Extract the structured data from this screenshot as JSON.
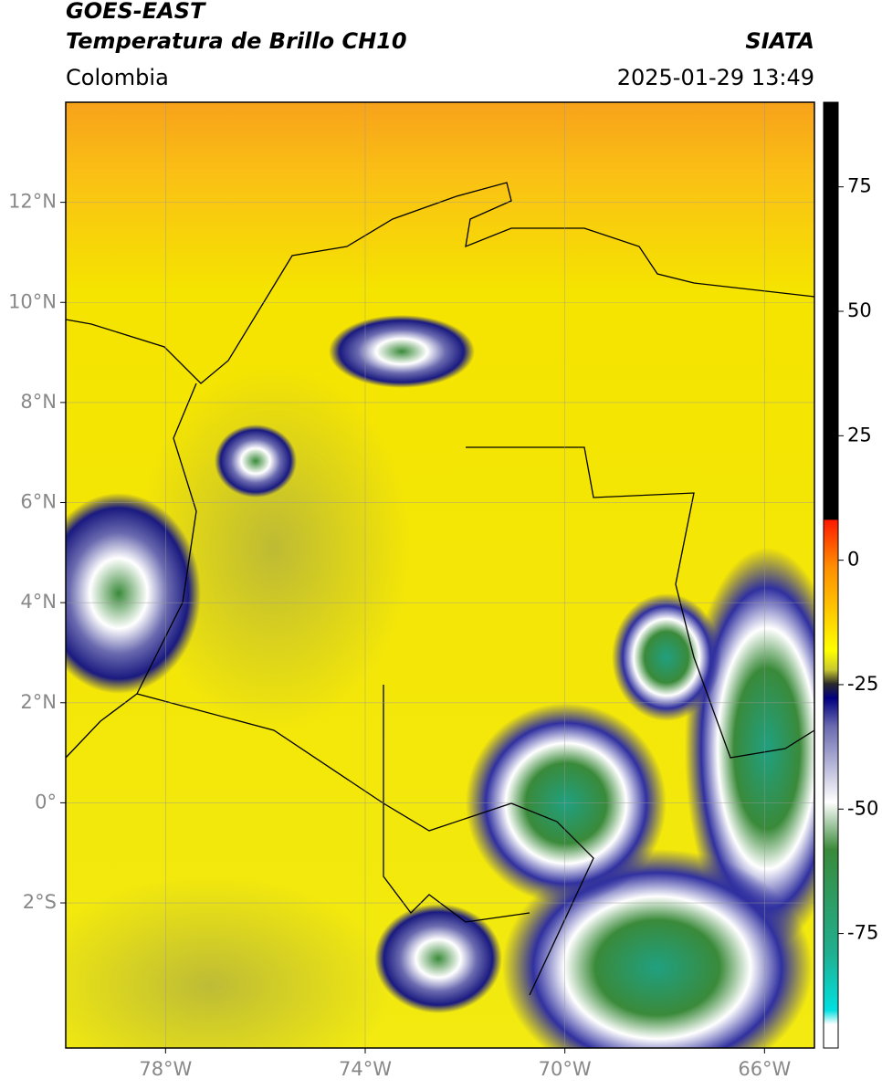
{
  "header": {
    "title": "GOES-EAST",
    "subtitle": "Temperatura de Brillo CH10",
    "region": "Colombia",
    "source": "SIATA",
    "datetime": "2025-01-29 13:49"
  },
  "map": {
    "xlim": [
      -80,
      -65
    ],
    "ylim": [
      -4.9,
      14
    ],
    "xticks": [
      {
        "value": -78,
        "label": "78°W"
      },
      {
        "value": -74,
        "label": "74°W"
      },
      {
        "value": -70,
        "label": "70°W"
      },
      {
        "value": -66,
        "label": "66°W"
      }
    ],
    "yticks": [
      {
        "value": 12,
        "label": "12°N"
      },
      {
        "value": 10,
        "label": "10°N"
      },
      {
        "value": 8,
        "label": "8°N"
      },
      {
        "value": 6,
        "label": "6°N"
      },
      {
        "value": 4,
        "label": "4°N"
      },
      {
        "value": 2,
        "label": "2°N"
      },
      {
        "value": 0,
        "label": "0°"
      },
      {
        "value": -2,
        "label": "2°S"
      }
    ]
  },
  "colorbar": {
    "range": [
      -98,
      92
    ],
    "ticks": [
      75,
      50,
      25,
      0,
      -25,
      -50,
      -75
    ]
  }
}
